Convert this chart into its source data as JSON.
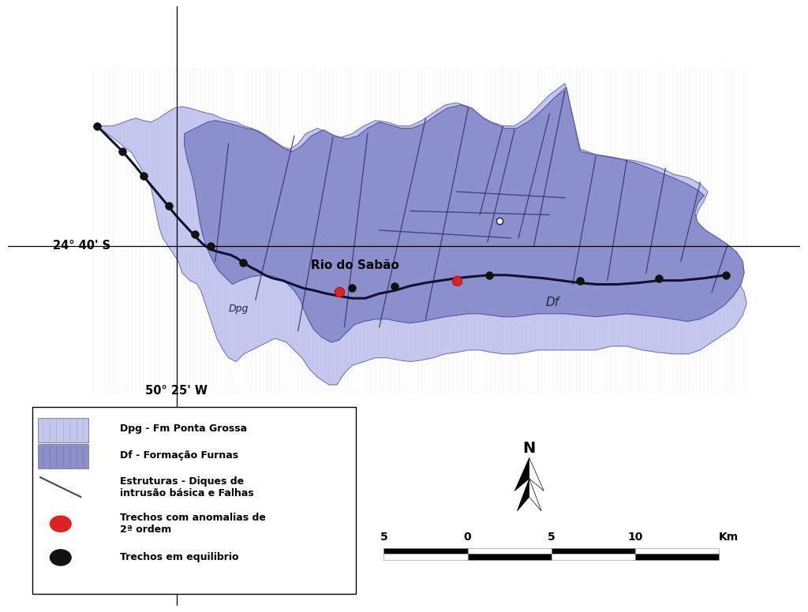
{
  "background_color": "#ffffff",
  "dpg_color": "#c5c8ee",
  "df_color": "#8b8fcc",
  "river_color": "#111133",
  "dike_color": "#333366",
  "red_point_color": "#dd2222",
  "black_point_color": "#111111",
  "coord_label_24": "24° 40' S",
  "coord_label_50": "50° 25' W",
  "label_dpg": "Dpg",
  "label_df": "Df",
  "label_rio": "Rio do Sabão",
  "legend_items": [
    {
      "label": "Dpg - Fm Ponta Grossa",
      "color": "#c5c8ee",
      "type": "patch"
    },
    {
      "label": "Df - Formação Furnas",
      "color": "#8b8fcc",
      "type": "patch"
    },
    {
      "label": "Estruturas - Diques de\nintrusão básica e Falhas",
      "color": "#444466",
      "type": "line"
    },
    {
      "label": "Trechos com anomalias de\n2ª ordem",
      "color": "#dd2222",
      "type": "circle"
    },
    {
      "label": "Trechos em equilibrio",
      "color": "#111111",
      "type": "circle"
    }
  ],
  "north_label": "N"
}
